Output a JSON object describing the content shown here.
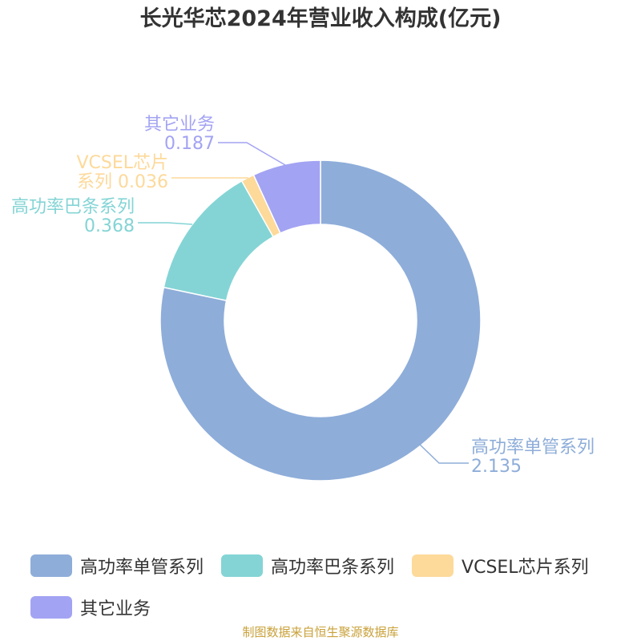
{
  "chart_data": {
    "type": "pie",
    "title": "长光华芯2024年营业收入构成(亿元)",
    "categories": [
      "高功率单管系列",
      "高功率巴条系列",
      "VCSEL芯片系列",
      "其它业务"
    ],
    "values": [
      2.135,
      0.368,
      0.036,
      0.187
    ],
    "colors": [
      "#8eadd9",
      "#84d4d5",
      "#fdd99a",
      "#a3a3f3"
    ],
    "label_text": [
      [
        "高功率单管系列",
        "2.135"
      ],
      [
        "高功率巴条系列",
        "0.368"
      ],
      [
        "VCSEL芯片",
        "系列 0.036"
      ],
      [
        "其它业务",
        "0.187"
      ]
    ],
    "legend_position": "bottom",
    "donut": true
  },
  "source_note": "制图数据来自恒生聚源数据库"
}
